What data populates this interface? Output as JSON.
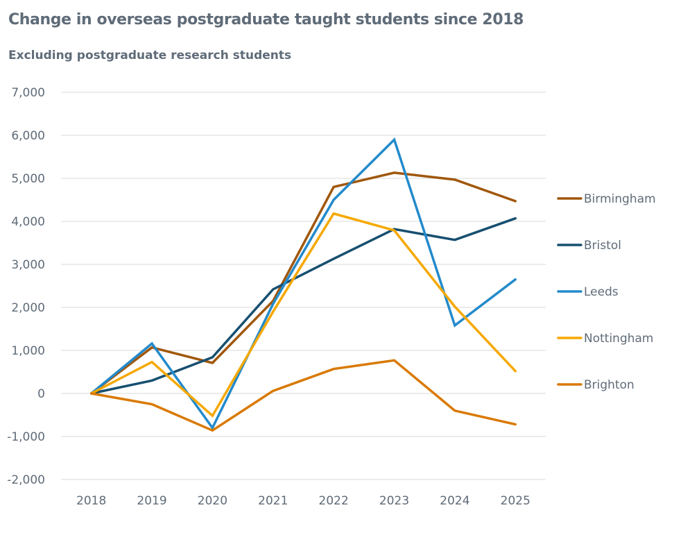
{
  "chart_data": {
    "type": "line",
    "title": "Change in overseas postgraduate taught students since 2018",
    "subtitle": "Excluding postgraduate research students",
    "xlabel": "",
    "ylabel": "",
    "categories": [
      "2018",
      "2019",
      "2020",
      "2021",
      "2022",
      "2023",
      "2024",
      "2025"
    ],
    "ylim": [
      -2000,
      7000
    ],
    "yticks": [
      7000,
      6000,
      5000,
      4000,
      3000,
      2000,
      1000,
      0,
      -1000,
      -2000
    ],
    "ytick_labels": [
      "7,000",
      "6,000",
      "5,000",
      "4,000",
      "3,000",
      "2,000",
      "1,000",
      "0",
      "-1,000",
      "-2,000"
    ],
    "grid": true,
    "legend_position": "right",
    "series": [
      {
        "name": "Birmingham",
        "color": "#a0570c",
        "values": [
          0,
          1070,
          710,
          2150,
          4800,
          5130,
          4970,
          4470
        ]
      },
      {
        "name": "Bristol",
        "color": "#174f70",
        "values": [
          0,
          300,
          840,
          2420,
          3130,
          3820,
          3570,
          4070
        ]
      },
      {
        "name": "Leeds",
        "color": "#238acb",
        "values": [
          0,
          1160,
          -800,
          2080,
          4500,
          5900,
          1580,
          2650
        ]
      },
      {
        "name": "Nottingham",
        "color": "#f5a800",
        "values": [
          0,
          730,
          -520,
          1900,
          4180,
          3790,
          2020,
          520
        ]
      },
      {
        "name": "Brighton",
        "color": "#d97900",
        "values": [
          0,
          -250,
          -860,
          60,
          570,
          770,
          -400,
          -720
        ]
      }
    ]
  }
}
